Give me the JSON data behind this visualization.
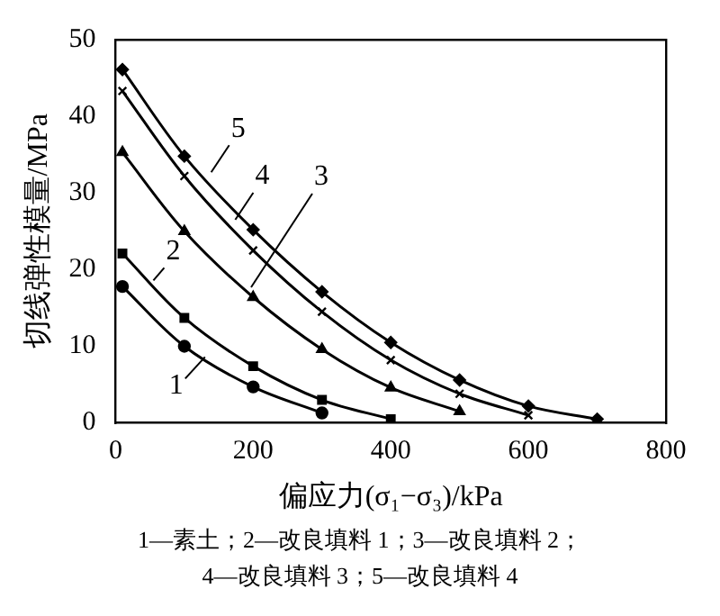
{
  "chart_data": {
    "type": "line",
    "xlabel": "偏应力(σ₁−σ₃)/kPa",
    "ylabel": "切线弹性模量/MPa",
    "xlim": [
      0,
      800
    ],
    "xticks": [
      0,
      200,
      400,
      600,
      800
    ],
    "ylim": [
      0,
      50
    ],
    "yticks": [
      0,
      10,
      20,
      30,
      40,
      50
    ],
    "grid": false,
    "legend": false,
    "line_style": "solid",
    "series": [
      {
        "color": "#000000",
        "marker": "circle",
        "x": [
          10,
          100,
          200,
          300
        ],
        "values": [
          17.8,
          10,
          4.7,
          1.3
        ]
      },
      {
        "color": "#000000",
        "marker": "square",
        "x": [
          10,
          100,
          200,
          300,
          400
        ],
        "values": [
          22.1,
          13.7,
          7.4,
          3,
          0.5
        ]
      },
      {
        "color": "#000000",
        "marker": "triangle",
        "x": [
          10,
          100,
          200,
          300,
          400,
          500
        ],
        "values": [
          35.3,
          25,
          16.4,
          9.6,
          4.6,
          1.5
        ]
      },
      {
        "color": "#000000",
        "marker": "cross",
        "x": [
          10,
          100,
          200,
          300,
          400,
          500,
          600
        ],
        "values": [
          43.3,
          32.2,
          22.5,
          14.5,
          8.2,
          3.8,
          1
        ]
      },
      {
        "color": "#000000",
        "marker": "diamond",
        "x": [
          10,
          100,
          200,
          300,
          400,
          500,
          600,
          700
        ],
        "values": [
          46.1,
          34.8,
          25.2,
          17.1,
          10.5,
          5.6,
          2.2,
          0.5
        ]
      }
    ],
    "annotations": [
      {
        "text": "1",
        "x": 130,
        "y": 8.6
      },
      {
        "text": "2",
        "x": 55,
        "y": 18.6
      },
      {
        "text": "3",
        "x": 197,
        "y": 17.7
      },
      {
        "text": "4",
        "x": 174,
        "y": 26.5
      },
      {
        "text": "5",
        "x": 139,
        "y": 32.7
      },
      "1—素土；2—改良填料 1；3—改良填料 2；",
      "4—改良填料 3；5—改良填料 4"
    ]
  }
}
